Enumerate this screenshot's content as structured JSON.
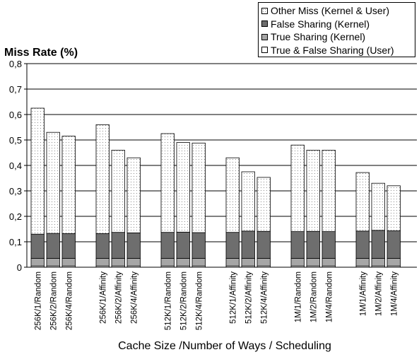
{
  "chart_data": {
    "type": "bar",
    "stacked": true,
    "ylabel": "Miss Rate (%)",
    "xlabel": "Cache Size /Number of Ways / Scheduling",
    "ylim": [
      0,
      0.8
    ],
    "yticks": [
      "0",
      "0,1",
      "0,2",
      "0,3",
      "0,4",
      "0,5",
      "0,6",
      "0,7",
      "0,8"
    ],
    "grid": true,
    "legend_position": "top-right",
    "categories": [
      "256K/1/Random",
      "256K/2/Random",
      "256K/4/Random",
      "256K/1/Affinity",
      "256K/2/Affinity",
      "256K/4/Affinity",
      "512K/1/Random",
      "512K/2/Random",
      "512K/4/Random",
      "512K/1/Affinity",
      "512K/2/Affinity",
      "512K/4/Affinity",
      "1M/1/Random",
      "1M/2/Random",
      "1M/4/Random",
      "1M/1/Affinity",
      "1M/2/Affinity",
      "1M/4/Affinity"
    ],
    "groups": [
      3,
      3,
      3,
      3,
      3,
      3
    ],
    "series": [
      {
        "name": "True & False Sharing (User)",
        "values": [
          0.005,
          0.005,
          0.005,
          0.005,
          0.005,
          0.005,
          0.005,
          0.005,
          0.005,
          0.005,
          0.005,
          0.005,
          0.005,
          0.005,
          0.005,
          0.005,
          0.005,
          0.005
        ]
      },
      {
        "name": "True Sharing (Kernel)",
        "values": [
          0.03,
          0.03,
          0.03,
          0.03,
          0.03,
          0.03,
          0.03,
          0.03,
          0.03,
          0.03,
          0.03,
          0.03,
          0.03,
          0.03,
          0.03,
          0.03,
          0.03,
          0.03
        ]
      },
      {
        "name": "False Sharing (Kernel)",
        "values": [
          0.095,
          0.098,
          0.097,
          0.097,
          0.102,
          0.1,
          0.102,
          0.103,
          0.101,
          0.102,
          0.107,
          0.106,
          0.105,
          0.106,
          0.105,
          0.107,
          0.11,
          0.108
        ]
      },
      {
        "name": "Other Miss (Kernel & User)",
        "values": [
          0.495,
          0.397,
          0.383,
          0.428,
          0.323,
          0.295,
          0.388,
          0.352,
          0.352,
          0.293,
          0.233,
          0.212,
          0.34,
          0.319,
          0.32,
          0.23,
          0.185,
          0.177
        ]
      }
    ],
    "colors": {
      "True & False Sharing (User)": "#ffffff",
      "True Sharing (Kernel)": "#a6a6a6",
      "False Sharing (Kernel)": "#6e6e6e",
      "Other Miss (Kernel & User)": "dotted-white"
    },
    "legend_order": [
      "Other Miss (Kernel & User)",
      "False Sharing (Kernel)",
      "True Sharing (Kernel)",
      "True & False Sharing (User)"
    ]
  }
}
